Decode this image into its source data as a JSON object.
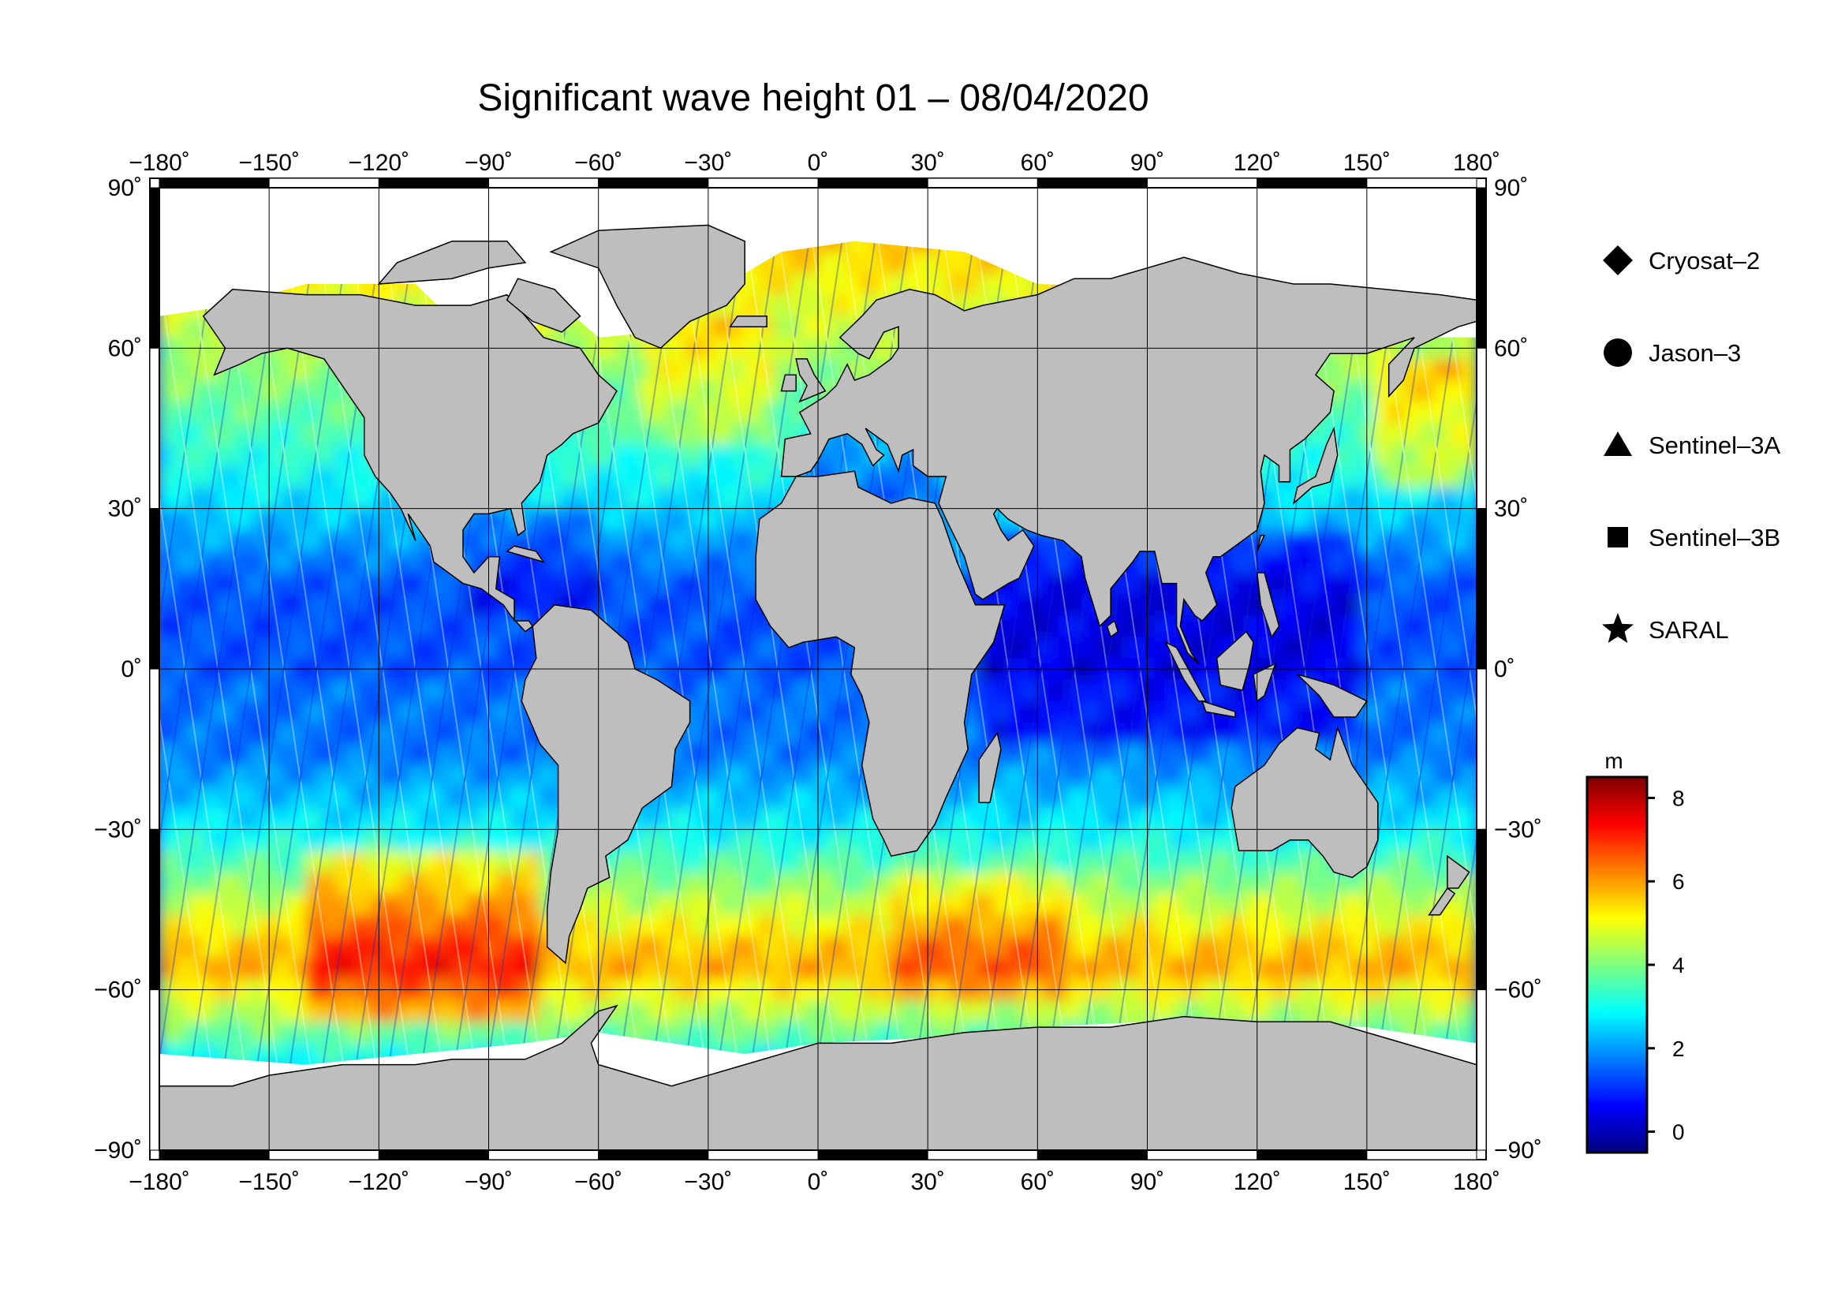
{
  "title": "Significant wave height 01 – 08/04/2020",
  "map": {
    "projection": "equirectangular",
    "lon_range": [
      -180,
      180
    ],
    "lat_range": [
      -90,
      90
    ],
    "grid": true,
    "ocean_field": "significant wave height (colour-coded)",
    "land_color": "#bebebe",
    "ice_color": "#ffffff",
    "lon_ticks": [
      {
        "value": -180,
        "label": "−180˚"
      },
      {
        "value": -150,
        "label": "−150˚"
      },
      {
        "value": -120,
        "label": "−120˚"
      },
      {
        "value": -90,
        "label": "−90˚"
      },
      {
        "value": -60,
        "label": "−60˚"
      },
      {
        "value": -30,
        "label": "−30˚"
      },
      {
        "value": 0,
        "label": "0˚"
      },
      {
        "value": 30,
        "label": "30˚"
      },
      {
        "value": 60,
        "label": "60˚"
      },
      {
        "value": 90,
        "label": "90˚"
      },
      {
        "value": 120,
        "label": "120˚"
      },
      {
        "value": 150,
        "label": "150˚"
      },
      {
        "value": 180,
        "label": "180˚"
      }
    ],
    "lat_ticks_left": [
      {
        "value": 90,
        "label": "90˚"
      },
      {
        "value": 60,
        "label": "60˚"
      },
      {
        "value": 30,
        "label": "30˚"
      },
      {
        "value": 0,
        "label": "0˚"
      },
      {
        "value": -30,
        "label": "−30˚"
      },
      {
        "value": -60,
        "label": "−60˚"
      },
      {
        "value": -90,
        "label": "−90˚"
      }
    ],
    "lat_ticks_right": [
      {
        "value": 90,
        "label": "90˚"
      },
      {
        "value": 60,
        "label": "60˚"
      },
      {
        "value": 30,
        "label": "30˚"
      },
      {
        "value": 0,
        "label": "0˚"
      },
      {
        "value": -30,
        "label": "−30˚"
      },
      {
        "value": -60,
        "label": "−60˚"
      },
      {
        "value": -90,
        "label": "−90˚"
      }
    ]
  },
  "legend": {
    "placement": "right",
    "items": [
      {
        "label": "Cryosat–2",
        "icon": "diamond-icon"
      },
      {
        "label": "Jason–3",
        "icon": "circle-icon"
      },
      {
        "label": "Sentinel–3A",
        "icon": "triangle-icon"
      },
      {
        "label": "Sentinel–3B",
        "icon": "square-icon"
      },
      {
        "label": "SARAL",
        "icon": "star-icon"
      }
    ]
  },
  "colorbar": {
    "unit": "m",
    "range": [
      -0.5,
      8.5
    ],
    "ticks": [
      {
        "value": 0,
        "label": "0"
      },
      {
        "value": 2,
        "label": "2"
      },
      {
        "value": 4,
        "label": "4"
      },
      {
        "value": 6,
        "label": "6"
      },
      {
        "value": 8,
        "label": "8"
      }
    ],
    "colormap": [
      "#00007f",
      "#0000ff",
      "#007fff",
      "#00ffff",
      "#7fff7f",
      "#ffff00",
      "#ff7f00",
      "#ff0000",
      "#7f0000"
    ]
  }
}
